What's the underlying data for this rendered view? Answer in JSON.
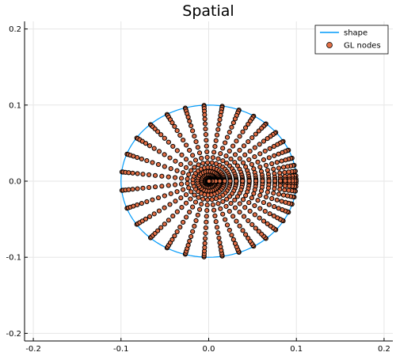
{
  "chart_data": {
    "type": "scatter",
    "title": "Spatial",
    "xlabel": "",
    "ylabel": "",
    "xlim": [
      -0.21,
      0.21
    ],
    "ylim": [
      -0.21,
      0.21
    ],
    "x_ticks": [
      -0.2,
      -0.1,
      0.0,
      0.1,
      0.2
    ],
    "y_ticks": [
      -0.2,
      -0.1,
      0.0,
      0.1,
      0.2
    ],
    "x_tick_labels": [
      "-0.2",
      "-0.1",
      "0.0",
      "0.1",
      "0.2"
    ],
    "y_tick_labels": [
      "-0.2",
      "-0.1",
      "0.0",
      "0.1",
      "0.2"
    ],
    "grid": true,
    "legend_position": "top-right",
    "series": [
      {
        "name": "shape",
        "type": "line",
        "color": "#009AFA",
        "shape": "circle",
        "center": [
          0.0,
          0.0
        ],
        "radius": 0.1
      },
      {
        "name": "GL nodes",
        "type": "scatter",
        "color": "#E26F46",
        "edge_color": "#000000",
        "distribution": "Gauss-Legendre nodes mapped onto a disk of radius 0.1",
        "radial_nodes": 20,
        "angular_nodes": 40
      }
    ]
  }
}
